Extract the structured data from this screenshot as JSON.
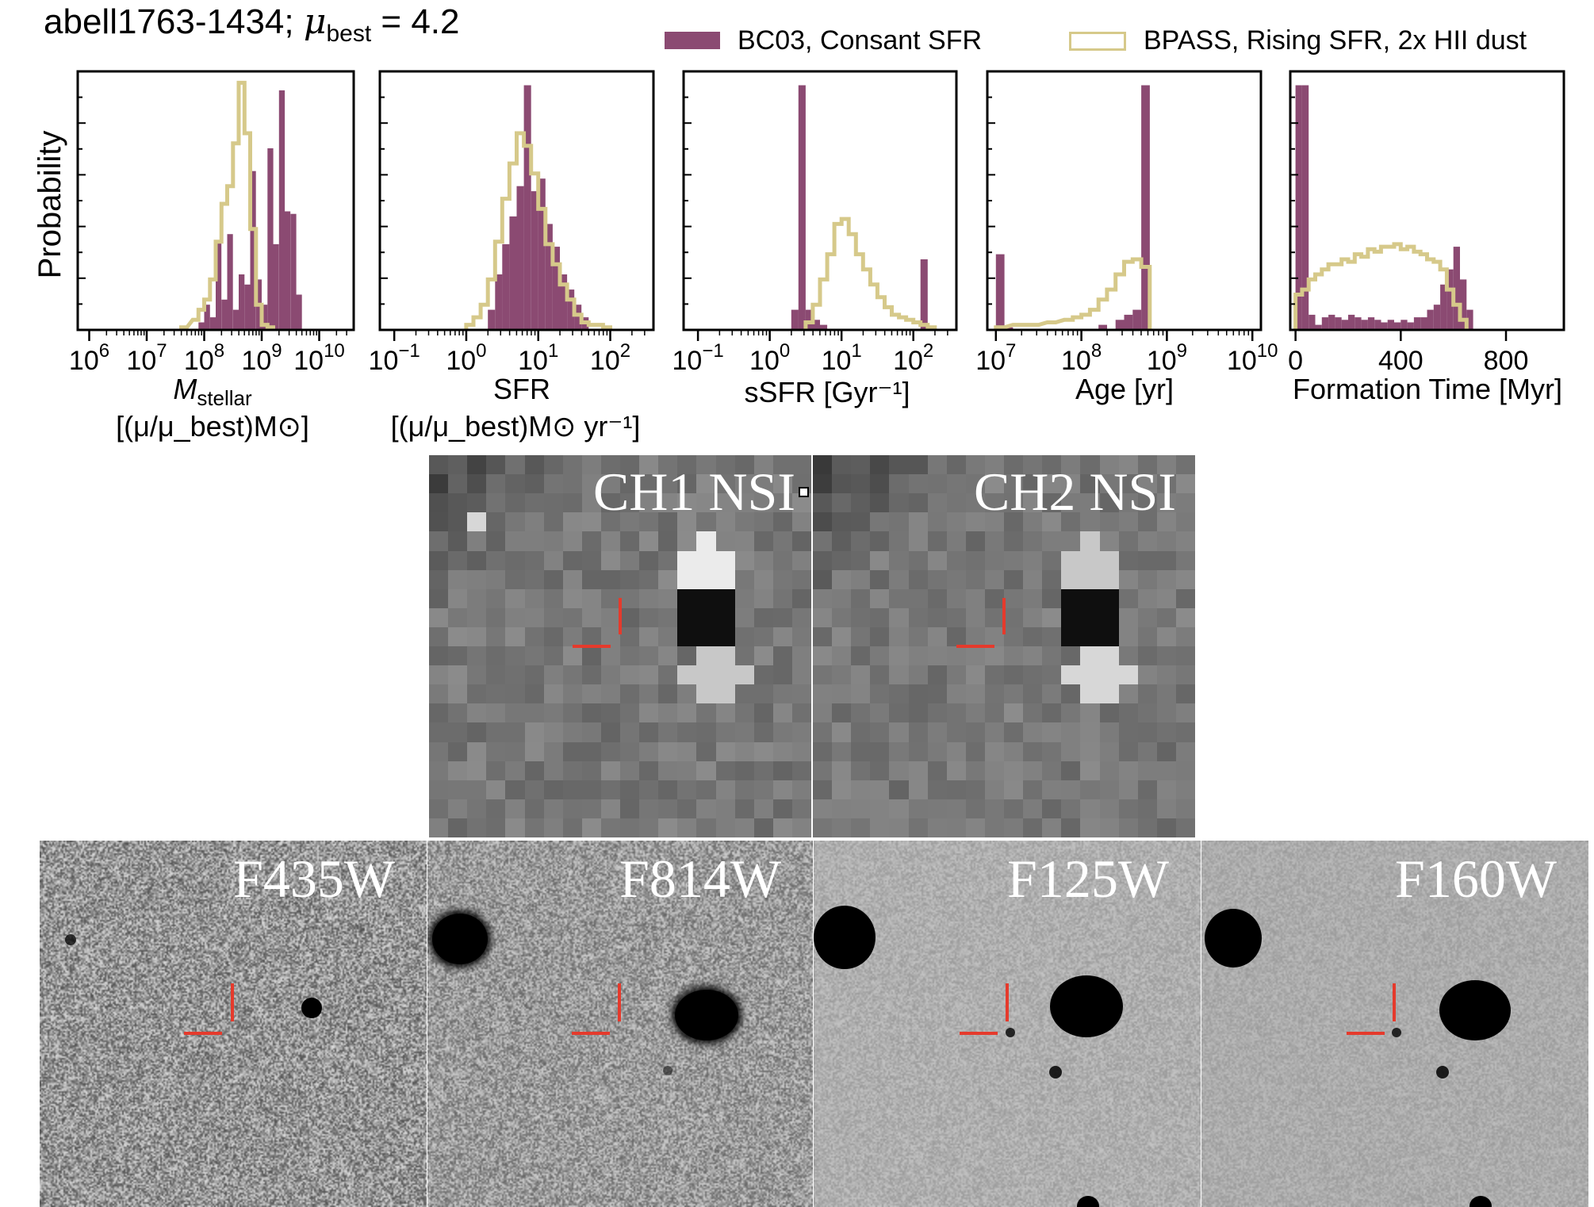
{
  "figure": {
    "title_prefix": "abell1763-1434; ",
    "title_mu": "μ",
    "title_mu_sub": "best",
    "title_suffix": " = 4.2"
  },
  "legend": {
    "placement": "top-right",
    "entries": [
      {
        "label": "BC03, Consant SFR",
        "color": "#8b4a72",
        "style": "filled"
      },
      {
        "label": "BPASS, Rising SFR, 2x HII dust",
        "color": "#d6c98a",
        "style": "step"
      }
    ]
  },
  "chart_data": [
    {
      "type": "bar",
      "ylabel": "Probability",
      "xscale": "log",
      "xlim_log10": [
        5.8,
        10.6
      ],
      "xticks": [
        "10^6",
        "10^7",
        "10^8",
        "10^9",
        "10^10"
      ],
      "xlabel": {
        "line1_main": "M",
        "line1_sub": "stellar",
        "line2": "[(μ/μ_best)M⊙]"
      },
      "series": [
        {
          "name": "BC03, Consant SFR",
          "x_log10": [
            7.9,
            8.0,
            8.1,
            8.2,
            8.3,
            8.4,
            8.5,
            8.6,
            8.7,
            8.8,
            8.9,
            9.0,
            9.1,
            9.2,
            9.3,
            9.4,
            9.5,
            9.6
          ],
          "y": [
            0.03,
            0.1,
            0.05,
            0.35,
            0.12,
            0.38,
            0.08,
            0.22,
            0.18,
            0.63,
            0.2,
            0.1,
            0.72,
            0.34,
            0.95,
            0.47,
            0.46,
            0.14
          ]
        },
        {
          "name": "BPASS, Rising SFR, 2x HII dust",
          "x_log10": [
            7.6,
            7.8,
            7.9,
            8.0,
            8.1,
            8.2,
            8.3,
            8.4,
            8.5,
            8.6,
            8.7,
            8.8,
            8.9,
            9.0,
            9.1
          ],
          "y": [
            0.01,
            0.04,
            0.08,
            0.12,
            0.2,
            0.35,
            0.5,
            0.57,
            0.74,
            0.98,
            0.78,
            0.4,
            0.1,
            0.02,
            0.01
          ]
        }
      ]
    },
    {
      "type": "bar",
      "xscale": "log",
      "xlim_log10": [
        -1.2,
        2.6
      ],
      "xticks": [
        "10^-1",
        "10^0",
        "10^1",
        "10^2"
      ],
      "xlabel": {
        "line1": "SFR",
        "line2": "[(μ/μ_best)M⊙ yr⁻¹]"
      },
      "series": [
        {
          "name": "BC03, Consant SFR",
          "x_log10": [
            0.3,
            0.4,
            0.5,
            0.6,
            0.7,
            0.8,
            0.9,
            1.0,
            1.1,
            1.2,
            1.3,
            1.4,
            1.5,
            1.6
          ],
          "y": [
            0.08,
            0.22,
            0.34,
            0.45,
            0.57,
            0.97,
            0.55,
            0.6,
            0.42,
            0.33,
            0.22,
            0.16,
            0.1,
            0.05
          ]
        },
        {
          "name": "BPASS, Rising SFR, 2x HII dust",
          "x_log10": [
            0.0,
            0.1,
            0.2,
            0.3,
            0.4,
            0.5,
            0.6,
            0.7,
            0.8,
            0.9,
            1.0,
            1.1,
            1.2,
            1.3,
            1.4,
            1.5,
            1.6,
            1.7,
            1.8,
            1.9
          ],
          "y": [
            0.02,
            0.05,
            0.1,
            0.2,
            0.35,
            0.52,
            0.66,
            0.78,
            0.73,
            0.62,
            0.48,
            0.34,
            0.26,
            0.18,
            0.12,
            0.06,
            0.03,
            0.02,
            0.02,
            0.01
          ]
        }
      ]
    },
    {
      "type": "bar",
      "xscale": "log",
      "xlim_log10": [
        -1.2,
        2.6
      ],
      "xticks": [
        "10^-1",
        "10^0",
        "10^1",
        "10^2"
      ],
      "xlabel": {
        "line1": "sSFR [Gyr⁻¹]"
      },
      "series": [
        {
          "name": "BC03, Consant SFR",
          "x_log10": [
            0.3,
            0.4,
            0.5,
            0.6,
            0.7,
            2.1
          ],
          "y": [
            0.08,
            0.97,
            0.08,
            0.04,
            0.02,
            0.28
          ]
        },
        {
          "name": "BPASS, Rising SFR, 2x HII dust",
          "x_log10": [
            0.5,
            0.6,
            0.7,
            0.8,
            0.9,
            1.0,
            1.1,
            1.2,
            1.3,
            1.4,
            1.5,
            1.6,
            1.7,
            1.8,
            1.9,
            2.0,
            2.1,
            2.2
          ],
          "y": [
            0.03,
            0.1,
            0.2,
            0.3,
            0.42,
            0.44,
            0.38,
            0.3,
            0.24,
            0.18,
            0.13,
            0.09,
            0.06,
            0.05,
            0.04,
            0.03,
            0.02,
            0.01
          ]
        }
      ]
    },
    {
      "type": "bar",
      "xscale": "log",
      "xlim_log10": [
        6.9,
        10.1
      ],
      "xticks": [
        "10^7",
        "10^8",
        "10^9",
        "10^10"
      ],
      "xlabel": {
        "line1": "Age [yr]"
      },
      "series": [
        {
          "name": "BC03, Consant SFR",
          "x_log10": [
            7.0,
            7.1,
            8.2,
            8.4,
            8.5,
            8.6,
            8.7
          ],
          "y": [
            0.3,
            0.01,
            0.02,
            0.04,
            0.06,
            0.08,
            0.97
          ]
        },
        {
          "name": "BPASS, Rising SFR, 2x HII dust",
          "x_log10": [
            7.0,
            7.2,
            7.4,
            7.6,
            7.8,
            7.9,
            8.0,
            8.1,
            8.2,
            8.3,
            8.4,
            8.5,
            8.6,
            8.7
          ],
          "y": [
            0.01,
            0.02,
            0.02,
            0.03,
            0.04,
            0.05,
            0.06,
            0.08,
            0.12,
            0.16,
            0.22,
            0.27,
            0.28,
            0.25
          ]
        }
      ]
    },
    {
      "type": "bar",
      "xscale": "linear",
      "xlim": [
        -20,
        1020
      ],
      "xticks": [
        "0",
        "400",
        "800"
      ],
      "xlabel": {
        "line1": "Formation Time [Myr]"
      },
      "series": [
        {
          "name": "BC03, Consant SFR",
          "x": [
            0,
            25,
            50,
            75,
            100,
            125,
            150,
            175,
            200,
            225,
            250,
            275,
            300,
            325,
            350,
            375,
            400,
            425,
            450,
            475,
            500,
            525,
            550,
            575,
            600,
            625,
            650
          ],
          "y": [
            0.97,
            0.97,
            0.06,
            0.02,
            0.05,
            0.06,
            0.05,
            0.04,
            0.06,
            0.05,
            0.04,
            0.05,
            0.04,
            0.03,
            0.04,
            0.03,
            0.04,
            0.03,
            0.05,
            0.05,
            0.08,
            0.1,
            0.18,
            0.24,
            0.33,
            0.2,
            0.08
          ]
        },
        {
          "name": "BPASS, Rising SFR, 2x HII dust",
          "x": [
            0,
            25,
            50,
            75,
            100,
            125,
            150,
            175,
            200,
            225,
            250,
            275,
            300,
            325,
            350,
            375,
            400,
            425,
            450,
            475,
            500,
            525,
            550,
            575,
            600,
            625
          ],
          "y": [
            0.14,
            0.16,
            0.2,
            0.22,
            0.24,
            0.26,
            0.26,
            0.28,
            0.27,
            0.3,
            0.29,
            0.32,
            0.31,
            0.33,
            0.33,
            0.34,
            0.32,
            0.33,
            0.31,
            0.3,
            0.28,
            0.27,
            0.24,
            0.16,
            0.1,
            0.04
          ]
        }
      ]
    }
  ],
  "ir_stamps": [
    {
      "label": "CH1 NSI"
    },
    {
      "label": "CH2 NSI"
    }
  ],
  "hst_stamps": [
    {
      "label": "F435W"
    },
    {
      "label": "F814W"
    },
    {
      "label": "F125W"
    },
    {
      "label": "F160W"
    }
  ]
}
